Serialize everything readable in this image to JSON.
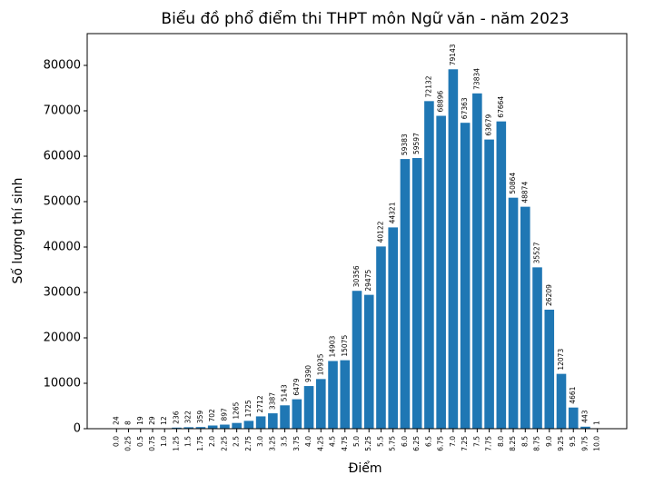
{
  "chart_data": {
    "type": "bar",
    "title": "Biểu đồ phổ điểm thi THPT môn Ngữ văn - năm 2023",
    "x_label": "Điểm",
    "y_label": "Số lượng thí sinh",
    "categories": [
      "0.0",
      "0.25",
      "0.5",
      "0.75",
      "1.0",
      "1.25",
      "1.5",
      "1.75",
      "2.0",
      "2.25",
      "2.5",
      "2.75",
      "3.0",
      "3.25",
      "3.5",
      "3.75",
      "4.0",
      "4.25",
      "4.5",
      "4.75",
      "5.0",
      "5.25",
      "5.5",
      "5.75",
      "6.0",
      "6.25",
      "6.5",
      "6.75",
      "7.0",
      "7.25",
      "7.5",
      "7.75",
      "8.0",
      "8.25",
      "8.5",
      "8.75",
      "9.0",
      "9.25",
      "9.5",
      "9.75",
      "10.0"
    ],
    "values": [
      24,
      8,
      19,
      29,
      12,
      236,
      322,
      359,
      702,
      897,
      1265,
      1725,
      2712,
      3387,
      5143,
      6479,
      9390,
      10935,
      14903,
      15075,
      30356,
      29475,
      40122,
      44321,
      59383,
      59597,
      72132,
      68896,
      79143,
      67363,
      73834,
      63679,
      67664,
      50864,
      48874,
      35527,
      26209,
      12073,
      4661,
      443,
      1
    ],
    "color": "#1f77b4",
    "ylim": [
      0,
      87000
    ],
    "yticks": [
      0,
      10000,
      20000,
      30000,
      40000,
      50000,
      60000,
      70000,
      80000
    ]
  }
}
